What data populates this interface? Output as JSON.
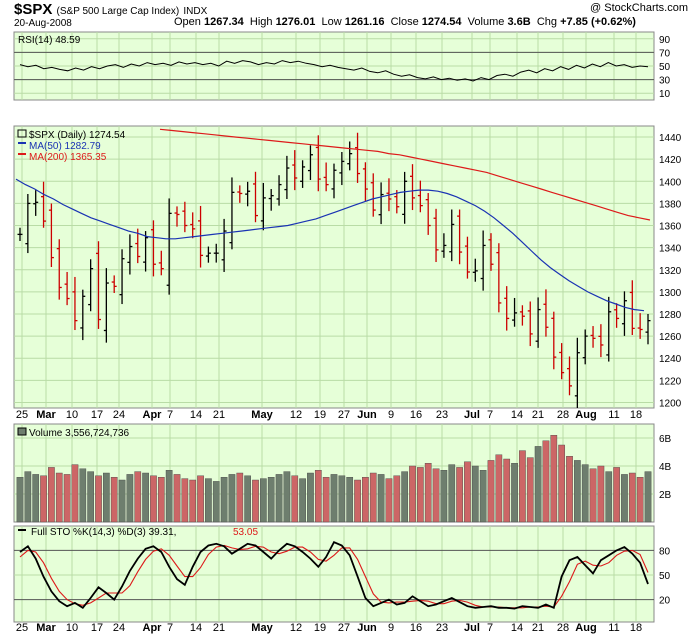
{
  "header": {
    "symbol": "$SPX",
    "symbol_desc": "(S&P 500 Large Cap Index)",
    "exchange": "INDX",
    "date": "20-Aug-2008",
    "credit": "@ StockCharts.com",
    "open_label": "Open",
    "open": "1267.34",
    "high_label": "High",
    "high": "1276.01",
    "low_label": "Low",
    "low": "1261.16",
    "close_label": "Close",
    "close": "1274.54",
    "volume_label": "Volume",
    "volume": "3.6B",
    "chg_label": "Chg",
    "chg": "+7.85 (+0.62%)"
  },
  "colors": {
    "panel_bg": "#e6ffd8",
    "grid": "#b9dca6",
    "up_bar": "#000000",
    "down_bar": "#cc0000",
    "ma50": "#1a33b3",
    "ma200": "#dd1a1a",
    "vol_up": "#6e7e6e",
    "vol_down": "#cc6666",
    "sto_k": "#000000",
    "sto_d": "#dd1a1a"
  },
  "legends": {
    "rsi": "RSI(14) 48.59",
    "price": "$SPX (Daily) 1274.54",
    "ma50": "MA(50) 1282.79",
    "ma200": "MA(200) 1365.35",
    "volume": "Volume 3,556,724,736",
    "sto_main": "Full STO %K(14,3) %D(3) 39.31,",
    "sto_d": "53.05"
  },
  "chart_data": [
    {
      "type": "line",
      "title": "RSI(14) 48.59",
      "ylim": [
        0,
        100
      ],
      "y_ticks": [
        10,
        30,
        50,
        70,
        90
      ],
      "reference_lines": [
        30,
        70
      ],
      "series": [
        {
          "name": "RSI(14)",
          "values": [
            52,
            49,
            51,
            46,
            48,
            45,
            43,
            47,
            44,
            49,
            46,
            50,
            52,
            48,
            53,
            50,
            55,
            52,
            54,
            51,
            56,
            53,
            55,
            52,
            54,
            50,
            57,
            54,
            58,
            56,
            52,
            55,
            53,
            58,
            55,
            57,
            54,
            52,
            49,
            51,
            48,
            46,
            44,
            47,
            42,
            40,
            43,
            38,
            35,
            37,
            33,
            31,
            34,
            30,
            32,
            29,
            31,
            28,
            33,
            30,
            36,
            38,
            35,
            41,
            44,
            40,
            46,
            43,
            49,
            45,
            51,
            47,
            53,
            49,
            55,
            50,
            52,
            48,
            50,
            49
          ]
        }
      ]
    },
    {
      "type": "line",
      "title": "$SPX (Daily) 1274.54",
      "ylim": [
        1195,
        1450
      ],
      "y_ticks": [
        1200,
        1220,
        1240,
        1260,
        1280,
        1300,
        1320,
        1340,
        1360,
        1380,
        1400,
        1420,
        1440
      ],
      "x_ticks": [
        "25",
        "Mar",
        "10",
        "17",
        "24",
        "Apr",
        "7",
        "14",
        "21",
        "May",
        "12",
        "19",
        "27",
        "Jun",
        "9",
        "16",
        "23",
        "Jul",
        "7",
        "14",
        "21",
        "28",
        "Aug",
        "11",
        "18"
      ],
      "close": [
        1352,
        1380,
        1381,
        1364,
        1331,
        1304,
        1294,
        1274,
        1296,
        1321,
        1275,
        1308,
        1305,
        1330,
        1341,
        1332,
        1349,
        1325,
        1321,
        1371,
        1370,
        1360,
        1357,
        1333,
        1335,
        1335,
        1355,
        1390,
        1389,
        1391,
        1369,
        1385,
        1387,
        1397,
        1412,
        1403,
        1413,
        1424,
        1402,
        1397,
        1410,
        1418,
        1425,
        1407,
        1393,
        1374,
        1388,
        1384,
        1377,
        1400,
        1385,
        1378,
        1360,
        1338,
        1342,
        1361,
        1336,
        1318,
        1319,
        1342,
        1325,
        1290,
        1276,
        1281,
        1278,
        1262,
        1284,
        1268,
        1241,
        1227,
        1215,
        1245,
        1260,
        1258,
        1252,
        1282,
        1276,
        1292,
        1267,
        1266,
        1274
      ],
      "series": [
        {
          "name": "MA(50) 1282.79",
          "values": [
            1402,
            1397,
            1393,
            1388,
            1384,
            1379,
            1375,
            1371,
            1367,
            1364,
            1361,
            1358,
            1355,
            1353,
            1350,
            1349,
            1348,
            1348,
            1349,
            1350,
            1351,
            1352,
            1353,
            1354,
            1355,
            1356,
            1357,
            1358,
            1359,
            1360,
            1362,
            1364,
            1366,
            1369,
            1372,
            1375,
            1378,
            1381,
            1384,
            1386,
            1388,
            1390,
            1391,
            1392,
            1392,
            1391,
            1389,
            1386,
            1382,
            1378,
            1373,
            1367,
            1360,
            1353,
            1345,
            1337,
            1329,
            1322,
            1316,
            1310,
            1305,
            1300,
            1296,
            1292,
            1289,
            1286,
            1284,
            1283
          ]
        },
        {
          "name": "MA(200) 1365.35",
          "values": [
            1447,
            1446,
            1445,
            1444,
            1443,
            1442,
            1441,
            1440,
            1439,
            1438,
            1437,
            1436,
            1435,
            1434,
            1433,
            1432,
            1431,
            1430,
            1429,
            1428,
            1427,
            1425,
            1424,
            1422,
            1420,
            1418,
            1416,
            1414,
            1412,
            1410,
            1408,
            1405,
            1402,
            1399,
            1396,
            1393,
            1390,
            1387,
            1384,
            1381,
            1378,
            1375,
            1372,
            1369,
            1367,
            1365
          ]
        }
      ]
    },
    {
      "type": "bar",
      "title": "Volume 3,556,724,736",
      "ylim": [
        0,
        7
      ],
      "y_ticks": [
        "2B",
        "4B",
        "6B"
      ],
      "values": [
        3.2,
        3.6,
        3.4,
        3.3,
        3.9,
        3.5,
        3.4,
        4.1,
        3.8,
        3.6,
        3.3,
        3.5,
        3.2,
        3.0,
        3.4,
        3.6,
        3.5,
        3.3,
        3.2,
        3.7,
        3.4,
        3.1,
        3.0,
        3.3,
        3.1,
        2.9,
        3.2,
        3.4,
        3.5,
        3.3,
        3.0,
        3.1,
        3.2,
        3.4,
        3.6,
        3.3,
        3.1,
        3.5,
        3.7,
        3.2,
        3.4,
        3.3,
        3.2,
        3.0,
        3.2,
        3.5,
        3.4,
        3.1,
        3.3,
        3.6,
        4.0,
        3.9,
        4.2,
        3.8,
        3.7,
        4.1,
        3.9,
        4.3,
        4.0,
        3.7,
        4.4,
        4.8,
        4.5,
        4.2,
        5.1,
        4.6,
        5.4,
        5.8,
        6.2,
        5.5,
        4.7,
        4.4,
        4.1,
        3.8,
        4.0,
        3.6,
        3.9,
        3.4,
        3.5,
        3.2,
        3.6
      ]
    },
    {
      "type": "line",
      "title": "Full STO %K(14,3) %D(3) 39.31, 53.05",
      "ylim": [
        0,
        100
      ],
      "y_ticks": [
        20,
        50,
        80
      ],
      "series": [
        {
          "name": "%K(14,3) 39.31",
          "values": [
            78,
            85,
            70,
            48,
            30,
            18,
            12,
            16,
            10,
            22,
            35,
            28,
            20,
            36,
            55,
            70,
            82,
            85,
            78,
            60,
            45,
            38,
            60,
            78,
            86,
            88,
            85,
            76,
            82,
            88,
            86,
            78,
            70,
            80,
            88,
            85,
            78,
            70,
            60,
            72,
            90,
            86,
            74,
            48,
            22,
            12,
            16,
            20,
            14,
            16,
            24,
            18,
            12,
            14,
            18,
            22,
            17,
            12,
            10,
            11,
            12,
            10,
            10,
            9,
            12,
            11,
            10,
            14,
            10,
            48,
            68,
            72,
            62,
            52,
            68,
            74,
            80,
            84,
            76,
            65,
            39
          ]
        },
        {
          "name": "%D(3) 53.05",
          "values": [
            72,
            80,
            78,
            65,
            46,
            30,
            20,
            15,
            13,
            16,
            22,
            28,
            28,
            28,
            37,
            54,
            69,
            79,
            82,
            74,
            61,
            48,
            48,
            59,
            75,
            84,
            86,
            83,
            81,
            82,
            85,
            84,
            78,
            76,
            79,
            84,
            84,
            78,
            69,
            67,
            74,
            83,
            83,
            69,
            48,
            27,
            17,
            16,
            17,
            17,
            18,
            19,
            18,
            15,
            15,
            18,
            19,
            17,
            13,
            11,
            11,
            11,
            10,
            10,
            10,
            11,
            11,
            12,
            11,
            24,
            42,
            63,
            67,
            62,
            61,
            65,
            74,
            79,
            80,
            75,
            53
          ]
        }
      ]
    }
  ]
}
